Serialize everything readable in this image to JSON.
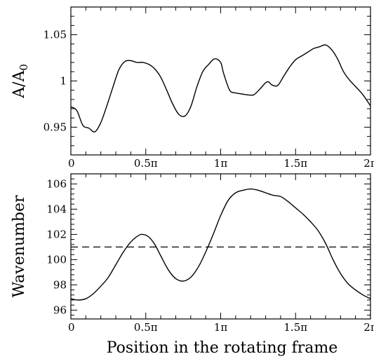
{
  "chart_data": [
    {
      "type": "line",
      "ylabel_base": "A/A",
      "ylabel_sub": "0",
      "xlabel": "",
      "xlim": [
        0,
        2
      ],
      "ylim": [
        0.92,
        1.08
      ],
      "xticks": [
        0,
        0.5,
        1,
        1.5,
        2
      ],
      "xtick_labels": [
        "0",
        "0.5π",
        "1π",
        "1.5π",
        "2π"
      ],
      "yticks": [
        0.95,
        1.0,
        1.05
      ],
      "ytick_labels": [
        "0.95",
        "1",
        "1.05"
      ],
      "grid": false,
      "series": [
        {
          "x": [
            0,
            0.04,
            0.08,
            0.12,
            0.16,
            0.2,
            0.24,
            0.28,
            0.32,
            0.36,
            0.4,
            0.44,
            0.48,
            0.52,
            0.56,
            0.6,
            0.64,
            0.68,
            0.72,
            0.76,
            0.8,
            0.84,
            0.88,
            0.92,
            0.96,
            1.0,
            1.02,
            1.06,
            1.1,
            1.14,
            1.18,
            1.22,
            1.26,
            1.3,
            1.32,
            1.34,
            1.38,
            1.42,
            1.46,
            1.5,
            1.54,
            1.58,
            1.62,
            1.66,
            1.7,
            1.74,
            1.78,
            1.82,
            1.86,
            1.9,
            1.95,
            2.0
          ],
          "y": [
            0.972,
            0.968,
            0.952,
            0.949,
            0.945,
            0.955,
            0.973,
            0.993,
            1.012,
            1.021,
            1.022,
            1.02,
            1.02,
            1.018,
            1.013,
            1.004,
            0.99,
            0.975,
            0.964,
            0.962,
            0.972,
            0.993,
            1.01,
            1.018,
            1.024,
            1.02,
            1.008,
            0.99,
            0.987,
            0.986,
            0.985,
            0.985,
            0.991,
            0.998,
            0.999,
            0.996,
            0.995,
            1.005,
            1.015,
            1.023,
            1.027,
            1.031,
            1.035,
            1.037,
            1.039,
            1.034,
            1.024,
            1.01,
            1.001,
            0.994,
            0.985,
            0.973
          ]
        }
      ]
    },
    {
      "type": "line",
      "ylabel": "Wavenumber",
      "xlabel": "Position in the rotating frame",
      "xlim": [
        0,
        2
      ],
      "ylim": [
        95.3,
        106.8
      ],
      "xticks": [
        0,
        0.5,
        1,
        1.5,
        2
      ],
      "xtick_labels": [
        "0",
        "0.5π",
        "1π",
        "1.5π",
        "2π"
      ],
      "yticks": [
        96,
        98,
        100,
        102,
        104,
        106
      ],
      "ytick_labels": [
        "96",
        "98",
        "100",
        "102",
        "104",
        "106"
      ],
      "grid": false,
      "series": [
        {
          "x": [
            0,
            0.05,
            0.1,
            0.15,
            0.2,
            0.25,
            0.3,
            0.35,
            0.4,
            0.45,
            0.48,
            0.52,
            0.56,
            0.6,
            0.65,
            0.7,
            0.75,
            0.8,
            0.85,
            0.9,
            0.95,
            1.0,
            1.05,
            1.1,
            1.15,
            1.2,
            1.25,
            1.3,
            1.35,
            1.4,
            1.45,
            1.5,
            1.55,
            1.6,
            1.65,
            1.7,
            1.75,
            1.8,
            1.85,
            1.9,
            1.95,
            2.0
          ],
          "y": [
            96.9,
            96.8,
            96.9,
            97.3,
            97.9,
            98.6,
            99.6,
            100.6,
            101.4,
            101.9,
            102.0,
            101.8,
            101.2,
            100.3,
            99.2,
            98.5,
            98.3,
            98.6,
            99.4,
            100.6,
            102.0,
            103.5,
            104.7,
            105.3,
            105.5,
            105.6,
            105.5,
            105.3,
            105.1,
            105.0,
            104.6,
            104.1,
            103.6,
            103.0,
            102.3,
            101.3,
            100.0,
            98.9,
            98.1,
            97.6,
            97.2,
            96.9
          ]
        },
        {
          "style": "dashed",
          "x": [
            0,
            2
          ],
          "y": [
            101.0,
            101.0
          ]
        }
      ]
    }
  ]
}
